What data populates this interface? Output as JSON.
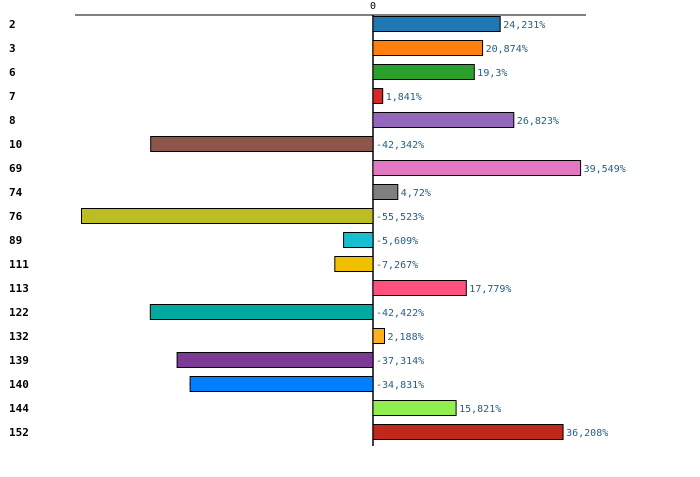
{
  "chart_data": {
    "type": "bar",
    "orientation": "horizontal",
    "title": "",
    "xlabel": "",
    "ylabel": "",
    "xlim": [
      -58.7,
      39.9
    ],
    "grid": false,
    "zero_tick_label": "0",
    "categories": [
      "2",
      "3",
      "6",
      "7",
      "8",
      "10",
      "69",
      "74",
      "76",
      "89",
      "111",
      "113",
      "122",
      "132",
      "139",
      "140",
      "144",
      "152"
    ],
    "values": [
      24.231,
      20.874,
      19.3,
      1.841,
      26.823,
      -42.342,
      39.549,
      4.72,
      -55.523,
      -5.609,
      -7.267,
      17.779,
      -42.422,
      2.188,
      -37.314,
      -34.831,
      15.821,
      36.208
    ],
    "value_labels": [
      "24,231%",
      "20,874%",
      "19,3%",
      "1,841%",
      "26,823%",
      "-42,342%",
      "39,549%",
      "4,72%",
      "-55,523%",
      "-5,609%",
      "-7,267%",
      "17,779%",
      "-42,422%",
      "2,188%",
      "-37,314%",
      "-34,831%",
      "15,821%",
      "36,208%"
    ],
    "colors": [
      "#1f77b4",
      "#ff7f0e",
      "#2ca02c",
      "#d62728",
      "#9467bd",
      "#8c564b",
      "#e377c2",
      "#7f7f7f",
      "#bcbd22",
      "#17becf",
      "#f0c000",
      "#ff5080",
      "#00aaa0",
      "#ffb020",
      "#7b3a96",
      "#0080ff",
      "#90ee50",
      "#c0281c"
    ]
  }
}
